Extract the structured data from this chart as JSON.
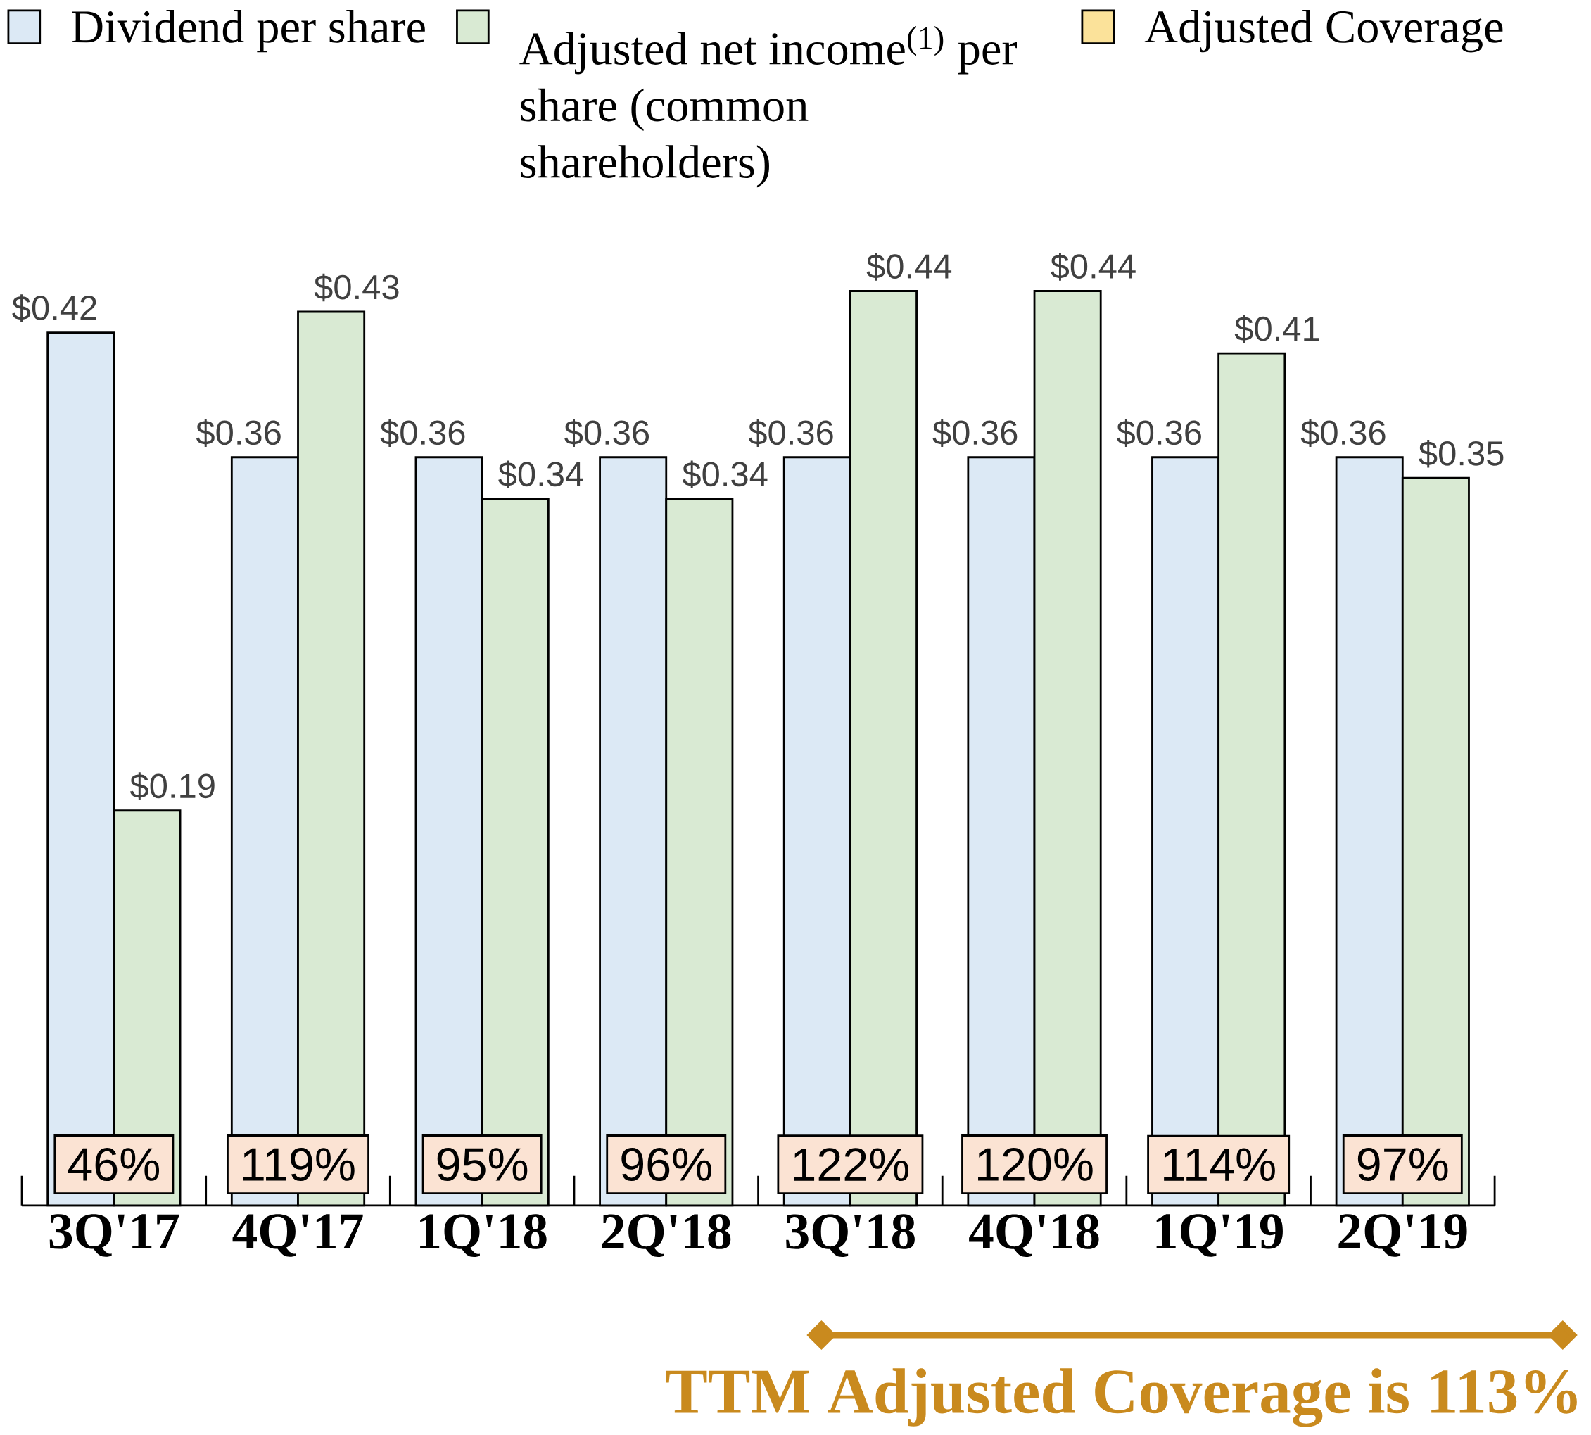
{
  "chart_data": {
    "type": "bar",
    "categories": [
      "3Q'17",
      "4Q'17",
      "1Q'18",
      "2Q'18",
      "3Q'18",
      "4Q'18",
      "1Q'19",
      "2Q'19"
    ],
    "series": [
      {
        "name": "Dividend per share",
        "color": "#dce9f5",
        "values": [
          0.42,
          0.36,
          0.36,
          0.36,
          0.36,
          0.36,
          0.36,
          0.36
        ],
        "value_labels": [
          "$0.42",
          "$0.36",
          "$0.36",
          "$0.36",
          "$0.36",
          "$0.36",
          "$0.36",
          "$0.36"
        ]
      },
      {
        "name": "Adjusted net income$^{(1)}$ per share (common shareholders)",
        "color": "#d9ead3",
        "values": [
          0.19,
          0.43,
          0.34,
          0.34,
          0.44,
          0.44,
          0.41,
          0.35
        ],
        "value_labels": [
          "$0.19",
          "$0.43",
          "$0.34",
          "$0.34",
          "$0.44",
          "$0.44",
          "$0.41",
          "$0.35"
        ]
      },
      {
        "name": "Adjusted Coverage",
        "color": "#fbe29a",
        "values": [
          null,
          null,
          null,
          null,
          null,
          null,
          null,
          null
        ],
        "value_labels": [
          "46%",
          "119%",
          "95%",
          "96%",
          "122%",
          "120%",
          "114%",
          "97%"
        ]
      }
    ],
    "legend": "top",
    "annotations": [
      "TTM Adjusted Coverage is 113%"
    ]
  }
}
